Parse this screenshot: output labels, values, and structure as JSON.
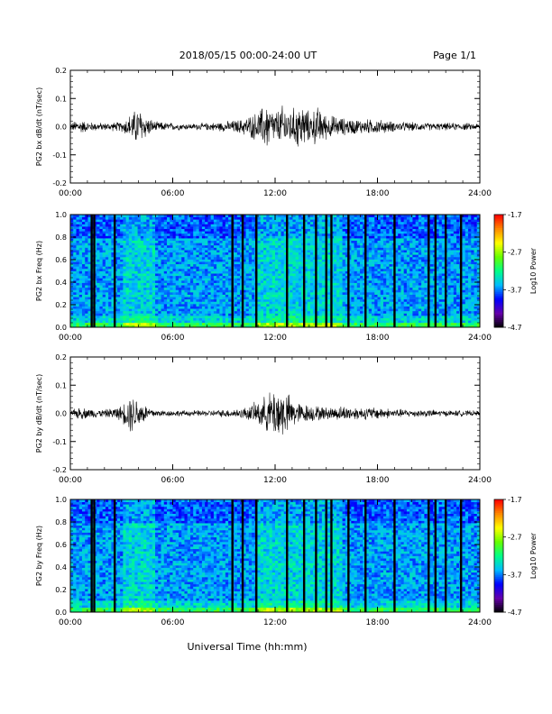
{
  "header": {
    "title": "2018/05/15  00:00-24:00 UT",
    "page": "Page 1/1"
  },
  "footer": {
    "xlabel": "Universal Time (hh:mm)"
  },
  "colors": {
    "trace": "#000000",
    "colormap": [
      "#000000",
      "#6600aa",
      "#0000ff",
      "#00bbff",
      "#00ff88",
      "#66ff00",
      "#ffff00",
      "#ff8800",
      "#ff0000"
    ],
    "column_gap": "#000000"
  },
  "chart_data": [
    {
      "type": "line",
      "ylabel": "PG2 bx dB/dt (nT/sec)",
      "xlim": [
        "00:00",
        "24:00"
      ],
      "xticks": [
        "00:00",
        "06:00",
        "12:00",
        "18:00",
        "24:00"
      ],
      "ylim": [
        -0.2,
        0.2
      ],
      "yticks": [
        "-0.2",
        "-0.1",
        "0.0",
        "0.1",
        "0.2"
      ],
      "envelope": {
        "x_hours": [
          0,
          0.5,
          1,
          2,
          3,
          3.5,
          4,
          4.5,
          5,
          6,
          7,
          8,
          9,
          10,
          10.5,
          11,
          11.5,
          12,
          12.5,
          13,
          13.5,
          14,
          14.5,
          15,
          16,
          17,
          18,
          19,
          20,
          21,
          22,
          23,
          24
        ],
        "amplitude": [
          0.015,
          0.03,
          0.02,
          0.015,
          0.02,
          0.05,
          0.08,
          0.04,
          0.02,
          0.015,
          0.012,
          0.015,
          0.02,
          0.03,
          0.045,
          0.06,
          0.1,
          0.06,
          0.09,
          0.07,
          0.1,
          0.06,
          0.08,
          0.05,
          0.035,
          0.03,
          0.03,
          0.02,
          0.018,
          0.015,
          0.015,
          0.015,
          0.012
        ]
      }
    },
    {
      "type": "heatmap",
      "ylabel": "PG2 bx Freq (Hz)",
      "xlim": [
        "00:00",
        "24:00"
      ],
      "xticks": [
        "00:00",
        "06:00",
        "12:00",
        "18:00",
        "24:00"
      ],
      "ylim": [
        0.0,
        1.0
      ],
      "yticks": [
        "0.0",
        "0.2",
        "0.4",
        "0.6",
        "0.8",
        "1.0"
      ],
      "colorbar": {
        "label": "Log10 Power",
        "range": [
          -4.7,
          -1.7
        ],
        "ticks": [
          "-1.7",
          "-2.7",
          "-3.7",
          "-4.7"
        ]
      },
      "gap_hours": [
        1.25,
        1.4,
        2.6,
        9.5,
        10.1,
        10.9,
        12.7,
        13.7,
        14.4,
        15.0,
        15.3,
        16.3,
        17.3,
        19.0,
        21.0,
        21.4,
        22.0,
        22.9
      ]
    },
    {
      "type": "line",
      "ylabel": "PG2 by dB/dt (nT/sec)",
      "xlim": [
        "00:00",
        "24:00"
      ],
      "xticks": [
        "00:00",
        "06:00",
        "12:00",
        "18:00",
        "24:00"
      ],
      "ylim": [
        -0.2,
        0.2
      ],
      "yticks": [
        "-0.2",
        "-0.1",
        "0.0",
        "0.1",
        "0.2"
      ],
      "envelope": {
        "x_hours": [
          0,
          0.5,
          1,
          2,
          3,
          3.5,
          4,
          4.5,
          5,
          6,
          7,
          8,
          9,
          10,
          10.5,
          11,
          11.5,
          12,
          12.5,
          13,
          13.5,
          14,
          14.5,
          15,
          16,
          17,
          18,
          19,
          20,
          21,
          22,
          23,
          24
        ],
        "amplitude": [
          0.012,
          0.025,
          0.02,
          0.015,
          0.03,
          0.08,
          0.06,
          0.03,
          0.015,
          0.012,
          0.012,
          0.012,
          0.015,
          0.02,
          0.03,
          0.05,
          0.07,
          0.11,
          0.1,
          0.06,
          0.04,
          0.035,
          0.03,
          0.025,
          0.03,
          0.025,
          0.025,
          0.018,
          0.015,
          0.015,
          0.012,
          0.012,
          0.01
        ]
      }
    },
    {
      "type": "heatmap",
      "ylabel": "PG2 by Freq (Hz)",
      "xlim": [
        "00:00",
        "24:00"
      ],
      "xticks": [
        "00:00",
        "06:00",
        "12:00",
        "18:00",
        "24:00"
      ],
      "ylim": [
        0.0,
        1.0
      ],
      "yticks": [
        "0.0",
        "0.2",
        "0.4",
        "0.6",
        "0.8",
        "1.0"
      ],
      "colorbar": {
        "label": "Log10 Power",
        "range": [
          -4.7,
          -1.7
        ],
        "ticks": [
          "-1.7",
          "-2.7",
          "-3.7",
          "-4.7"
        ]
      },
      "gap_hours": [
        1.25,
        1.4,
        2.6,
        9.5,
        10.1,
        10.9,
        12.7,
        13.7,
        14.4,
        15.0,
        15.3,
        16.3,
        17.3,
        19.0,
        21.0,
        21.4,
        22.0,
        22.9
      ]
    }
  ]
}
